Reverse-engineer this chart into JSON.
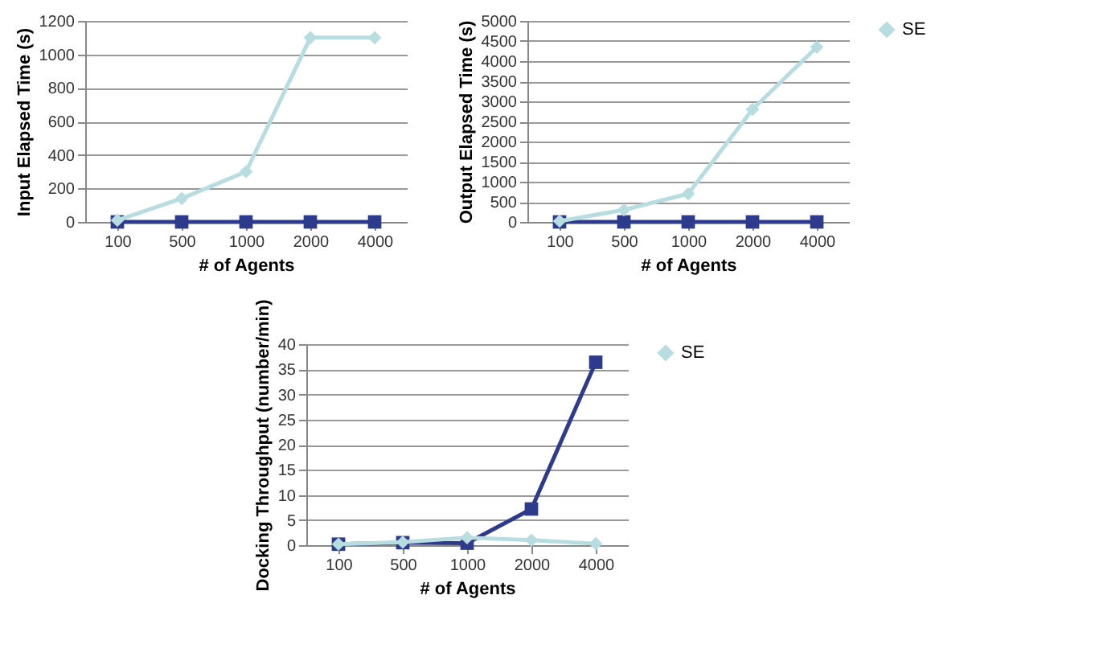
{
  "chart_data": [
    {
      "type": "line",
      "ylabel": "Input Elapsed Time (s)",
      "xlabel": "# of Agents",
      "categories": [
        "100",
        "500",
        "1000",
        "2000",
        "4000"
      ],
      "ylim": [
        0,
        1200
      ],
      "yticks": [
        0,
        200,
        400,
        600,
        800,
        1000,
        1200
      ],
      "grid": "y",
      "legend": "right",
      "series": [
        {
          "color": "#2e3a8c",
          "marker": "square",
          "values": [
            0,
            0,
            0,
            0,
            0
          ]
        },
        {
          "name": "SE",
          "color": "#b8dde0",
          "marker": "diamond",
          "values": [
            10,
            140,
            300,
            1100,
            1100
          ]
        }
      ]
    },
    {
      "type": "line",
      "ylabel": "Output Elapsed Time (s)",
      "xlabel": "# of Agents",
      "categories": [
        "100",
        "500",
        "1000",
        "2000",
        "4000"
      ],
      "ylim": [
        0,
        5000
      ],
      "yticks": [
        0,
        500,
        1000,
        1500,
        2000,
        2500,
        3000,
        3500,
        4000,
        4500,
        5000
      ],
      "grid": "y",
      "legend": "right",
      "series": [
        {
          "color": "#2e3a8c",
          "marker": "square",
          "values": [
            0,
            0,
            0,
            0,
            0
          ]
        },
        {
          "name": "SE",
          "color": "#b8dde0",
          "marker": "diamond",
          "values": [
            20,
            300,
            700,
            2800,
            4350
          ]
        }
      ]
    },
    {
      "type": "line",
      "ylabel": "Docking Throughput (number/min)",
      "xlabel": "# of Agents",
      "categories": [
        "100",
        "500",
        "1000",
        "2000",
        "4000"
      ],
      "ylim": [
        0,
        40
      ],
      "yticks": [
        0,
        5,
        10,
        15,
        20,
        25,
        30,
        35,
        40
      ],
      "grid": "y",
      "legend": "right",
      "series": [
        {
          "color": "#2e3a8c",
          "marker": "square",
          "values": [
            0.2,
            0.5,
            0.4,
            7.2,
            36.4
          ]
        },
        {
          "name": "SE",
          "color": "#b8dde0",
          "marker": "diamond",
          "values": [
            0.2,
            0.6,
            1.5,
            1.0,
            0.3
          ]
        }
      ]
    }
  ]
}
